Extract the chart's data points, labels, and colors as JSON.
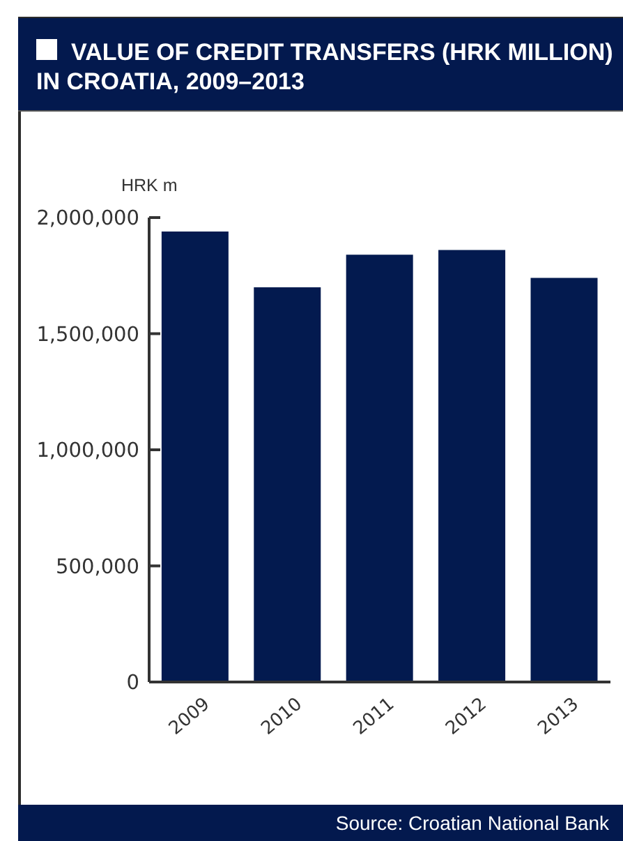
{
  "chart_data": {
    "type": "bar",
    "title": "VALUE OF CREDIT TRANSFERS (HRK MILLION) IN CROATIA, 2009–2013",
    "ylabel": "HRK m",
    "categories": [
      "2009",
      "2010",
      "2011",
      "2012",
      "2013"
    ],
    "values": [
      1940000,
      1700000,
      1840000,
      1860000,
      1740000
    ],
    "color": "#031a4f",
    "ylim": [
      0,
      2000000
    ],
    "yticks": [
      0,
      {
        "value": 500000,
        "label": "500,000"
      },
      {
        "value": 1000000,
        "label": "1,000,000"
      },
      {
        "value": 1500000,
        "label": "1,500,000"
      },
      {
        "value": 2000000,
        "label": "2,000,000"
      }
    ],
    "annotations": [
      "Source: Croatian National Bank"
    ]
  }
}
